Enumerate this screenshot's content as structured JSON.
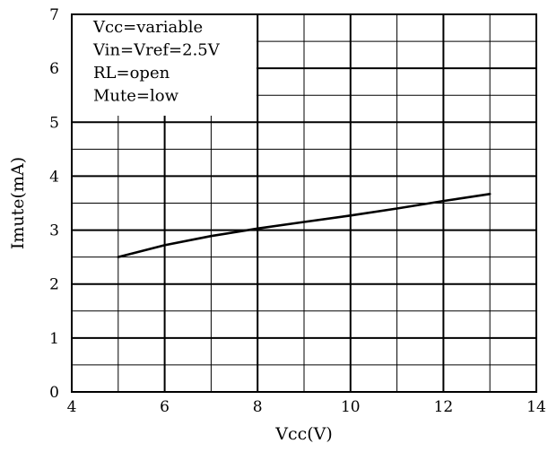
{
  "chart_data": {
    "type": "line",
    "xlabel": "Vcc(V)",
    "ylabel": "Imute(mA)",
    "xlim": [
      4,
      14
    ],
    "ylim": [
      0,
      7
    ],
    "x_ticks": [
      4,
      6,
      8,
      10,
      12,
      14
    ],
    "y_ticks": [
      0,
      1,
      2,
      3,
      4,
      5,
      6,
      7
    ],
    "grid": true,
    "legend_position": "top-left",
    "conditions": [
      "Vcc=variable",
      "Vin=Vref=2.5V",
      "RL=open",
      "Mute=low"
    ],
    "series": [
      {
        "x": [
          5,
          6,
          7,
          8,
          9,
          10,
          11,
          12,
          13
        ],
        "y": [
          2.5,
          2.72,
          2.89,
          3.03,
          3.15,
          3.27,
          3.4,
          3.54,
          3.67
        ]
      }
    ]
  }
}
